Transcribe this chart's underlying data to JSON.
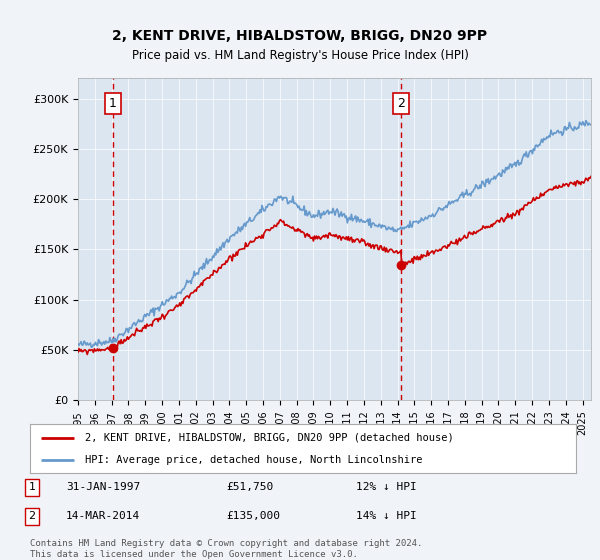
{
  "title": "2, KENT DRIVE, HIBALDSTOW, BRIGG, DN20 9PP",
  "subtitle": "Price paid vs. HM Land Registry's House Price Index (HPI)",
  "background_color": "#f0f4f8",
  "plot_bg_color": "#dce6f0",
  "ylim": [
    0,
    320000
  ],
  "yticks": [
    0,
    50000,
    100000,
    150000,
    200000,
    250000,
    300000
  ],
  "ytick_labels": [
    "£0",
    "£50K",
    "£100K",
    "£150K",
    "£200K",
    "£250K",
    "£300K"
  ],
  "sale1_date_x": 1997.08,
  "sale1_price": 51750,
  "sale1_label": "1",
  "sale2_date_x": 2014.21,
  "sale2_price": 135000,
  "sale2_label": "2",
  "hpi_line_color": "#6699cc",
  "price_line_color": "#cc0000",
  "marker_color": "#cc0000",
  "vline_color": "#cc0000",
  "legend_label_red": "2, KENT DRIVE, HIBALDSTOW, BRIGG, DN20 9PP (detached house)",
  "legend_label_blue": "HPI: Average price, detached house, North Lincolnshire",
  "footnote1": "Contains HM Land Registry data © Crown copyright and database right 2024.",
  "footnote2": "This data is licensed under the Open Government Licence v3.0.",
  "xmin": 1995,
  "xmax": 2025.5
}
